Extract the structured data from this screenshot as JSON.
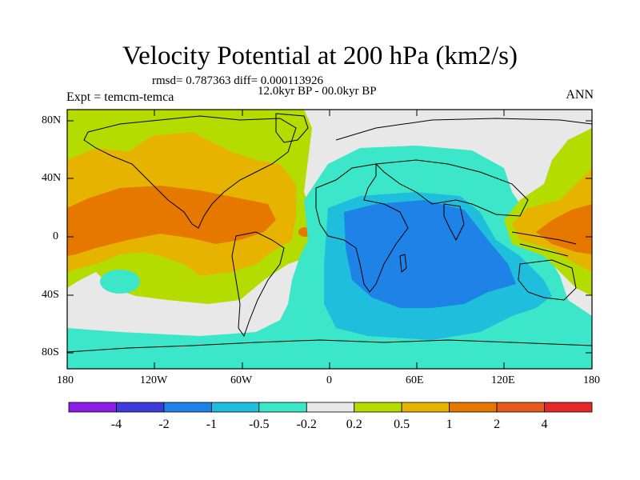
{
  "title": "Velocity Potential at 200 hPa (km2/s)",
  "stats": "rmsd= 0.787363 diff= 0.000113926",
  "subtitle": "12.0kyr BP - 00.0kyr BP",
  "expt": "Expt = temcm-temca",
  "season": "ANN",
  "lat_labels": [
    "80N",
    "40N",
    "0",
    "40S",
    "80S"
  ],
  "lon_labels": [
    "180",
    "120W",
    "60W",
    "0",
    "60E",
    "120E",
    "180"
  ],
  "colorbar": {
    "labels": [
      "-4",
      "-2",
      "-1",
      "-0.5",
      "-0.2",
      "0.2",
      "0.5",
      "1",
      "2",
      "4"
    ],
    "colors": [
      "#8c1ee6",
      "#3c3cdc",
      "#1e82e6",
      "#1ebedc",
      "#3ce6c8",
      "#e8e8e8",
      "#b4dc00",
      "#e6b400",
      "#e67800",
      "#e65a1e",
      "#e62828"
    ]
  }
}
